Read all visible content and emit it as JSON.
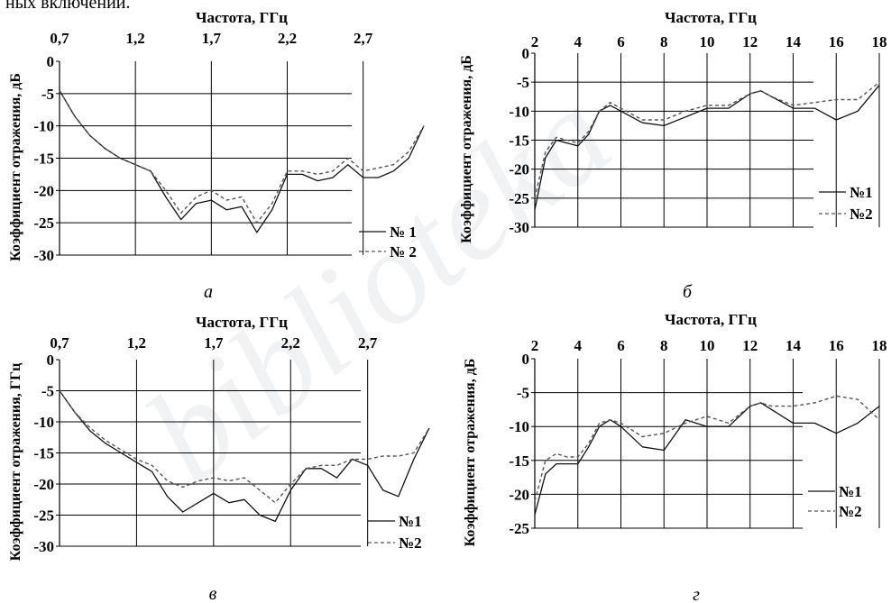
{
  "top_text": "ных включений.",
  "chart_data": [
    {
      "type": "line",
      "caption": "а",
      "xlabel": "Частота, ГГц",
      "ylabel": "Коэффициент отражения, дБ",
      "xlim": [
        0.7,
        3.1
      ],
      "ylim": [
        -30,
        0
      ],
      "xticks": [
        0.7,
        1.2,
        1.7,
        2.2,
        2.7
      ],
      "xtick_labels": [
        "0,7",
        "1,2",
        "1,7",
        "2,2",
        "2,7"
      ],
      "yticks": [
        0,
        -5,
        -10,
        -15,
        -20,
        -25,
        -30
      ],
      "grid": "on",
      "legend_position": "bottom-right",
      "series": [
        {
          "name": "№ 1",
          "style": "solid",
          "x": [
            0.7,
            0.8,
            0.9,
            1.0,
            1.1,
            1.2,
            1.3,
            1.4,
            1.5,
            1.6,
            1.7,
            1.8,
            1.9,
            2.0,
            2.1,
            2.2,
            2.3,
            2.4,
            2.5,
            2.6,
            2.7,
            2.8,
            2.9,
            3.0,
            3.1
          ],
          "values": [
            -4.5,
            -8.5,
            -11.5,
            -13.5,
            -15,
            -16,
            -17,
            -21,
            -24.5,
            -22,
            -21.5,
            -23,
            -22.5,
            -26.5,
            -23,
            -17.5,
            -17.5,
            -18.5,
            -18,
            -16,
            -18,
            -18,
            -17,
            -15,
            -10
          ]
        },
        {
          "name": "№ 2",
          "style": "dashed",
          "x": [
            0.7,
            0.8,
            0.9,
            1.0,
            1.1,
            1.2,
            1.3,
            1.4,
            1.5,
            1.6,
            1.7,
            1.8,
            1.9,
            2.0,
            2.1,
            2.2,
            2.3,
            2.4,
            2.5,
            2.6,
            2.7,
            2.8,
            2.9,
            3.0,
            3.1
          ],
          "values": [
            -4.5,
            -8.5,
            -11.5,
            -13.5,
            -15,
            -16,
            -17,
            -20,
            -23.5,
            -21,
            -20,
            -21.5,
            -21,
            -25,
            -22,
            -17,
            -17,
            -17.5,
            -17,
            -15,
            -17,
            -16.5,
            -16,
            -14,
            -10
          ]
        }
      ]
    },
    {
      "type": "line",
      "caption": "б",
      "xlabel": "Частота, ГГц",
      "ylabel": "Коэффициент отражения, дБ",
      "xlim": [
        2,
        18
      ],
      "ylim": [
        -30,
        0
      ],
      "xticks": [
        2,
        4,
        6,
        8,
        10,
        12,
        14,
        16,
        18
      ],
      "xtick_labels": [
        "2",
        "4",
        "6",
        "8",
        "10",
        "12",
        "14",
        "16",
        "18"
      ],
      "yticks": [
        0,
        -5,
        -10,
        -15,
        -20,
        -25,
        -30
      ],
      "grid": "on",
      "legend_position": "bottom-right",
      "series": [
        {
          "name": "№1",
          "style": "solid",
          "x": [
            2,
            2.5,
            3,
            3.5,
            4,
            4.5,
            5,
            5.5,
            6,
            7,
            8,
            9,
            10,
            11,
            12,
            12.5,
            13,
            14,
            15,
            16,
            17,
            18
          ],
          "values": [
            -27,
            -18,
            -15,
            -15.5,
            -16,
            -14,
            -10,
            -9,
            -10,
            -12,
            -12.5,
            -11,
            -9.5,
            -9.5,
            -7,
            -6.5,
            -7.5,
            -9.5,
            -9.5,
            -11.5,
            -10,
            -5.5
          ]
        },
        {
          "name": "№2",
          "style": "dashed",
          "x": [
            2,
            2.5,
            3,
            3.5,
            4,
            4.5,
            5,
            5.5,
            6,
            7,
            8,
            9,
            10,
            11,
            12,
            12.5,
            13,
            14,
            15,
            16,
            17,
            18
          ],
          "values": [
            -25,
            -17,
            -14.5,
            -15,
            -15.5,
            -13.5,
            -10,
            -8.5,
            -9.5,
            -11.5,
            -11.5,
            -10,
            -9,
            -9,
            -7,
            -6.5,
            -7.5,
            -9,
            -8.5,
            -8,
            -8,
            -5
          ]
        }
      ]
    },
    {
      "type": "line",
      "caption": "в",
      "xlabel": "Частота, ГГц",
      "ylabel": "Коэффициент отражения, ГГц",
      "xlim": [
        0.7,
        3.1
      ],
      "ylim": [
        -30,
        0
      ],
      "xticks": [
        0.7,
        1.2,
        1.7,
        2.2,
        2.7
      ],
      "xtick_labels": [
        "0,7",
        "1,2",
        "1,7",
        "2,2",
        "2,7"
      ],
      "yticks": [
        0,
        -5,
        -10,
        -15,
        -20,
        -25,
        -30
      ],
      "grid": "on",
      "legend_position": "bottom-right",
      "series": [
        {
          "name": "№1",
          "style": "solid",
          "x": [
            0.7,
            0.8,
            0.9,
            1.0,
            1.1,
            1.2,
            1.3,
            1.4,
            1.5,
            1.6,
            1.7,
            1.8,
            1.9,
            2.0,
            2.1,
            2.2,
            2.3,
            2.4,
            2.5,
            2.6,
            2.7,
            2.8,
            2.9,
            3.0,
            3.1
          ],
          "values": [
            -5,
            -8.5,
            -11.5,
            -13.5,
            -15,
            -16.5,
            -18,
            -22,
            -24.5,
            -23,
            -21.5,
            -23,
            -22.5,
            -25,
            -26,
            -21,
            -17.5,
            -17.5,
            -19,
            -16,
            -17,
            -21,
            -22,
            -16,
            -11
          ]
        },
        {
          "name": "№2",
          "style": "dashed",
          "x": [
            0.7,
            0.8,
            0.9,
            1.0,
            1.1,
            1.2,
            1.3,
            1.4,
            1.5,
            1.6,
            1.7,
            1.8,
            1.9,
            2.0,
            2.1,
            2.2,
            2.3,
            2.4,
            2.5,
            2.6,
            2.7,
            2.8,
            2.9,
            3.0,
            3.1
          ],
          "values": [
            -5,
            -8.5,
            -11,
            -13,
            -14.5,
            -16,
            -17,
            -19.5,
            -20.5,
            -19.5,
            -19,
            -19.5,
            -19,
            -21,
            -23,
            -20,
            -17.5,
            -17,
            -17,
            -16,
            -16,
            -15.5,
            -15.5,
            -15,
            -11
          ]
        }
      ]
    },
    {
      "type": "line",
      "caption": "г",
      "xlabel": "Частота, ГГц",
      "ylabel": "Коэффициент отражения, дБ",
      "xlim": [
        2,
        18
      ],
      "ylim": [
        -25,
        0
      ],
      "xticks": [
        2,
        4,
        6,
        8,
        10,
        12,
        14,
        16,
        18
      ],
      "xtick_labels": [
        "2",
        "4",
        "6",
        "8",
        "10",
        "12",
        "14",
        "16",
        "18"
      ],
      "yticks": [
        0,
        -5,
        -10,
        -15,
        -20,
        -25
      ],
      "grid": "on",
      "legend_position": "bottom-right",
      "series": [
        {
          "name": "№1",
          "style": "solid",
          "x": [
            2,
            2.5,
            3,
            3.5,
            4,
            4.5,
            5,
            5.5,
            6,
            7,
            8,
            9,
            10,
            11,
            12,
            12.5,
            13,
            14,
            15,
            16,
            17,
            18
          ],
          "values": [
            -23,
            -17,
            -15.5,
            -15.5,
            -15.5,
            -13,
            -10,
            -9,
            -10,
            -13,
            -13.5,
            -9,
            -10,
            -10,
            -7,
            -6.5,
            -7.5,
            -9.5,
            -9.5,
            -11,
            -9.5,
            -7
          ]
        },
        {
          "name": "№2",
          "style": "dashed",
          "x": [
            2,
            2.5,
            3,
            3.5,
            4,
            4.5,
            5,
            5.5,
            6,
            7,
            8,
            9,
            10,
            11,
            12,
            12.5,
            13,
            14,
            15,
            16,
            17,
            18
          ],
          "values": [
            -21,
            -15,
            -14,
            -14.5,
            -14.5,
            -12.5,
            -9.5,
            -9,
            -9.5,
            -11.5,
            -11,
            -9.5,
            -8.5,
            -9.5,
            -7,
            -6.5,
            -7,
            -7,
            -6.5,
            -5.5,
            -6,
            -9
          ]
        }
      ]
    }
  ]
}
